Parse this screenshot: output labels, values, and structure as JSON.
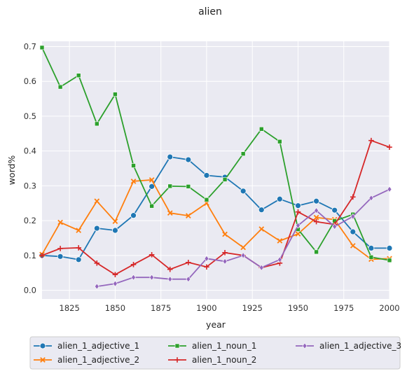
{
  "chart_data": {
    "type": "line",
    "title": "alien",
    "xlabel": "year",
    "ylabel": "word%",
    "xlim": [
      1810,
      2000
    ],
    "ylim": [
      -0.025,
      0.715
    ],
    "xticks": [
      1825,
      1850,
      1875,
      1900,
      1925,
      1950,
      1975,
      2000
    ],
    "yticks": [
      0.0,
      0.1,
      0.2,
      0.3,
      0.4,
      0.5,
      0.6,
      0.7
    ],
    "grid": true,
    "legend_position": "bottom",
    "legend_columns": 3,
    "series": [
      {
        "name": "alien_1_adjective_1",
        "color": "#1f77b4",
        "marker": "circle",
        "x": [
          1810,
          1820,
          1830,
          1840,
          1850,
          1860,
          1870,
          1880,
          1890,
          1900,
          1910,
          1920,
          1930,
          1940,
          1950,
          1960,
          1970,
          1980,
          1990,
          2000
        ],
        "y": [
          0.1,
          0.097,
          0.088,
          0.178,
          0.172,
          0.215,
          0.298,
          0.383,
          0.375,
          0.33,
          0.325,
          0.285,
          0.231,
          0.262,
          0.243,
          0.256,
          0.23,
          0.168,
          0.121,
          0.121
        ]
      },
      {
        "name": "alien_1_adjective_2",
        "color": "#ff7f0e",
        "marker": "x",
        "x": [
          1810,
          1820,
          1830,
          1840,
          1850,
          1860,
          1870,
          1880,
          1890,
          1900,
          1910,
          1920,
          1930,
          1940,
          1950,
          1960,
          1970,
          1980,
          1990,
          2000
        ],
        "y": [
          0.103,
          0.195,
          0.172,
          0.256,
          0.198,
          0.313,
          0.317,
          0.222,
          0.214,
          0.25,
          0.161,
          0.123,
          0.176,
          0.142,
          0.162,
          0.209,
          0.203,
          0.128,
          0.089,
          0.091
        ]
      },
      {
        "name": "alien_1_noun_1",
        "color": "#2ca02c",
        "marker": "square",
        "x": [
          1810,
          1820,
          1830,
          1840,
          1850,
          1860,
          1870,
          1880,
          1890,
          1900,
          1910,
          1920,
          1930,
          1940,
          1950,
          1960,
          1970,
          1980,
          1990,
          2000
        ],
        "y": [
          0.697,
          0.584,
          0.617,
          0.478,
          0.563,
          0.358,
          0.242,
          0.299,
          0.298,
          0.26,
          0.318,
          0.392,
          0.463,
          0.427,
          0.175,
          0.11,
          0.199,
          0.218,
          0.095,
          0.086
        ]
      },
      {
        "name": "alien_1_noun_2",
        "color": "#d62728",
        "marker": "plus",
        "x": [
          1810,
          1820,
          1830,
          1840,
          1850,
          1860,
          1870,
          1880,
          1890,
          1900,
          1910,
          1920,
          1930,
          1940,
          1950,
          1960,
          1970,
          1980,
          1990,
          2000
        ],
        "y": [
          0.1,
          0.12,
          0.122,
          0.078,
          0.045,
          0.074,
          0.102,
          0.06,
          0.08,
          0.067,
          0.108,
          0.1,
          0.065,
          0.078,
          0.225,
          0.197,
          0.189,
          0.268,
          0.43,
          0.411
        ]
      },
      {
        "name": "alien_1_adjective_3",
        "color": "#9467bd",
        "marker": "diamond",
        "x": [
          1840,
          1850,
          1860,
          1870,
          1880,
          1890,
          1900,
          1910,
          1920,
          1930,
          1940,
          1950,
          1960,
          1970,
          1980,
          1990,
          2000
        ],
        "y": [
          0.011,
          0.019,
          0.037,
          0.037,
          0.032,
          0.032,
          0.091,
          0.083,
          0.1,
          0.065,
          0.088,
          0.186,
          0.229,
          0.183,
          0.212,
          0.265,
          0.29
        ]
      }
    ]
  }
}
